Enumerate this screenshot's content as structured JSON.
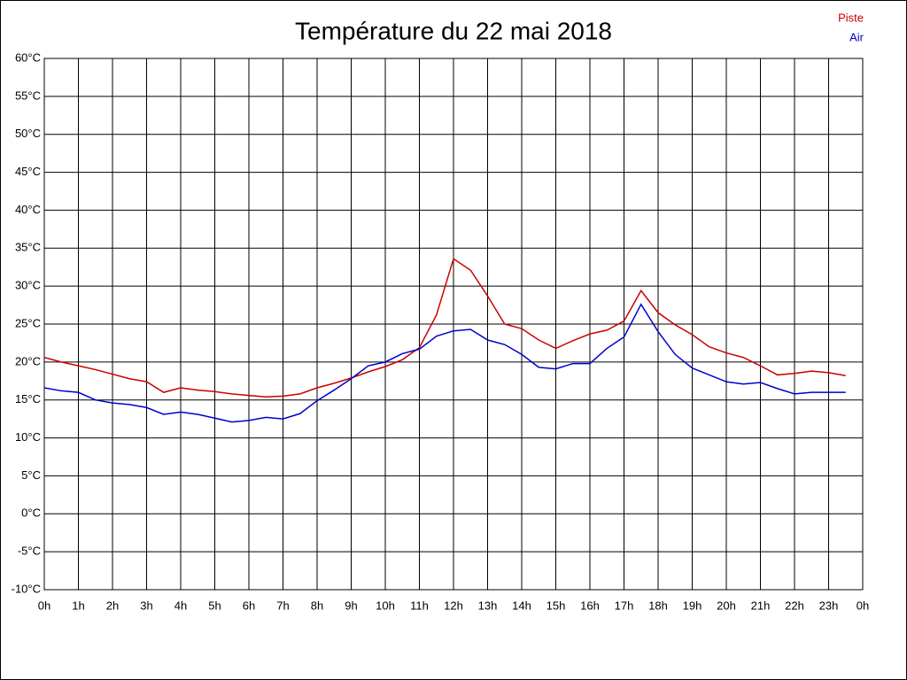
{
  "chart_data": {
    "type": "line",
    "title": "Température du 22 mai 2018",
    "x": [
      0,
      0.5,
      1,
      1.5,
      2,
      2.5,
      3,
      3.5,
      4,
      4.5,
      5,
      5.5,
      6,
      6.5,
      7,
      7.5,
      8,
      8.5,
      9,
      9.5,
      10,
      10.5,
      11,
      11.5,
      12,
      12.5,
      13,
      13.5,
      14,
      14.5,
      15,
      15.5,
      16,
      16.5,
      17,
      17.5,
      18,
      18.5,
      19,
      19.5,
      20,
      20.5,
      21,
      21.5,
      22,
      22.5,
      23,
      23.5
    ],
    "series": [
      {
        "name": "Piste",
        "color": "#cc0000",
        "values": [
          20.6,
          20.0,
          19.5,
          19.0,
          18.4,
          17.8,
          17.4,
          16.0,
          16.6,
          16.3,
          16.1,
          15.8,
          15.6,
          15.4,
          15.5,
          15.8,
          16.6,
          17.2,
          17.9,
          18.7,
          19.4,
          20.3,
          21.9,
          26.2,
          33.6,
          32.1,
          28.7,
          25.0,
          24.4,
          22.9,
          21.8,
          22.8,
          23.7,
          24.2,
          25.4,
          29.4,
          26.5,
          24.9,
          23.6,
          22.0,
          21.2,
          20.6,
          19.5,
          18.3,
          18.5,
          18.8,
          18.6,
          18.2
        ]
      },
      {
        "name": "Air",
        "color": "#0000cc",
        "values": [
          16.6,
          16.2,
          16.0,
          15.0,
          14.6,
          14.4,
          14.0,
          13.1,
          13.4,
          13.1,
          12.6,
          12.1,
          12.3,
          12.7,
          12.5,
          13.2,
          14.9,
          16.3,
          17.8,
          19.5,
          20.0,
          21.1,
          21.7,
          23.4,
          24.1,
          24.3,
          22.9,
          22.3,
          21.0,
          19.3,
          19.1,
          19.8,
          19.8,
          21.8,
          23.3,
          27.6,
          24.0,
          21.0,
          19.2,
          18.3,
          17.4,
          17.1,
          17.3,
          16.5,
          15.8,
          16.0,
          16.0,
          16.0
        ]
      }
    ],
    "xlim": [
      0,
      24
    ],
    "xticks": [
      {
        "value": 0,
        "label": "0h"
      },
      {
        "value": 1,
        "label": "1h"
      },
      {
        "value": 2,
        "label": "2h"
      },
      {
        "value": 3,
        "label": "3h"
      },
      {
        "value": 4,
        "label": "4h"
      },
      {
        "value": 5,
        "label": "5h"
      },
      {
        "value": 6,
        "label": "6h"
      },
      {
        "value": 7,
        "label": "7h"
      },
      {
        "value": 8,
        "label": "8h"
      },
      {
        "value": 9,
        "label": "9h"
      },
      {
        "value": 10,
        "label": "10h"
      },
      {
        "value": 11,
        "label": "11h"
      },
      {
        "value": 12,
        "label": "12h"
      },
      {
        "value": 13,
        "label": "13h"
      },
      {
        "value": 14,
        "label": "14h"
      },
      {
        "value": 15,
        "label": "15h"
      },
      {
        "value": 16,
        "label": "16h"
      },
      {
        "value": 17,
        "label": "17h"
      },
      {
        "value": 18,
        "label": "18h"
      },
      {
        "value": 19,
        "label": "19h"
      },
      {
        "value": 20,
        "label": "20h"
      },
      {
        "value": 21,
        "label": "21h"
      },
      {
        "value": 22,
        "label": "22h"
      },
      {
        "value": 23,
        "label": "23h"
      },
      {
        "value": 24,
        "label": "0h"
      }
    ],
    "ylim": [
      -10,
      60
    ],
    "yticks": [
      {
        "value": -10,
        "label": "-10°C"
      },
      {
        "value": -5,
        "label": "-5°C"
      },
      {
        "value": 0,
        "label": "0°C"
      },
      {
        "value": 5,
        "label": "5°C"
      },
      {
        "value": 10,
        "label": "10°C"
      },
      {
        "value": 15,
        "label": "15°C"
      },
      {
        "value": 20,
        "label": "20°C"
      },
      {
        "value": 25,
        "label": "25°C"
      },
      {
        "value": 30,
        "label": "30°C"
      },
      {
        "value": 35,
        "label": "35°C"
      },
      {
        "value": 40,
        "label": "40°C"
      },
      {
        "value": 45,
        "label": "45°C"
      },
      {
        "value": 50,
        "label": "50°C"
      },
      {
        "value": 55,
        "label": "55°C"
      },
      {
        "value": 60,
        "label": "60°C"
      }
    ],
    "grid": true,
    "legend": "top-right"
  }
}
